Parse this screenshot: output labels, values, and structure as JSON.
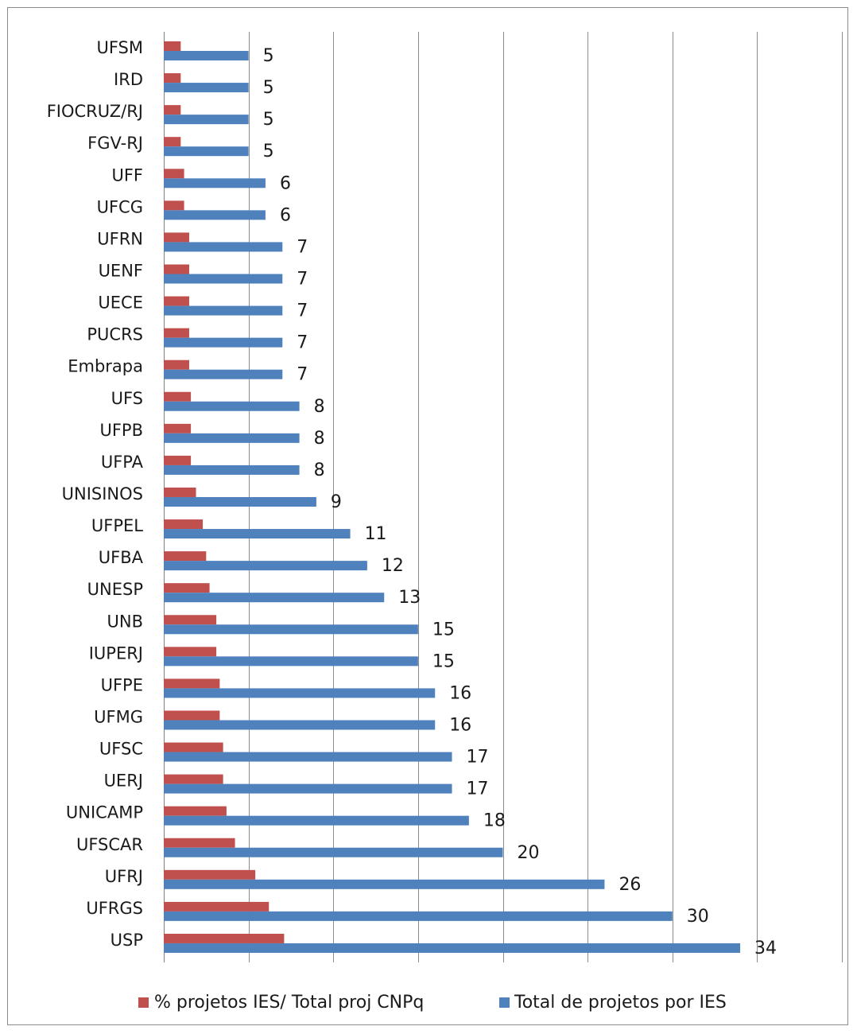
{
  "chart_data": {
    "type": "bar",
    "orientation": "horizontal",
    "categories": [
      "UFSM",
      "IRD",
      "FIOCRUZ/RJ",
      "FGV-RJ",
      "UFF",
      "UFCG",
      "UFRN",
      "UENF",
      "UECE",
      "PUCRS",
      "Embrapa",
      "UFS",
      "UFPB",
      "UFPA",
      "UNISINOS",
      "UFPEL",
      "UFBA",
      "UNESP",
      "UNB",
      "IUPERJ",
      "UFPE",
      "UFMG",
      "UFSC",
      "UERJ",
      "UNICAMP",
      "UFSCAR",
      "UFRJ",
      "UFRGS",
      "USP"
    ],
    "series": [
      {
        "name": "% projetos IES/ Total proj CNPq",
        "color": "#c0504d",
        "values": [
          1.0,
          1.0,
          1.0,
          1.0,
          1.2,
          1.2,
          1.5,
          1.5,
          1.5,
          1.5,
          1.5,
          1.6,
          1.6,
          1.6,
          1.9,
          2.3,
          2.5,
          2.7,
          3.1,
          3.1,
          3.3,
          3.3,
          3.5,
          3.5,
          3.7,
          4.2,
          5.4,
          6.2,
          7.1
        ]
      },
      {
        "name": "Total de projetos por IES",
        "color": "#4f81bd",
        "values": [
          5,
          5,
          5,
          5,
          6,
          6,
          7,
          7,
          7,
          7,
          7,
          8,
          8,
          8,
          9,
          11,
          12,
          13,
          15,
          15,
          16,
          16,
          17,
          17,
          18,
          20,
          26,
          30,
          34
        ],
        "data_labels": [
          "5",
          "5",
          "5",
          "5",
          "6",
          "6",
          "7",
          "7",
          "7",
          "7",
          "7",
          "8",
          "8",
          "8",
          "9",
          "11",
          "12",
          "13",
          "15",
          "15",
          "16",
          "16",
          "17",
          "17",
          "18",
          "20",
          "26",
          "30",
          "34"
        ]
      }
    ],
    "xlim": [
      0,
      40
    ],
    "x_gridlines": [
      0,
      5,
      10,
      15,
      20,
      25,
      30,
      35,
      40
    ],
    "grid": true,
    "legend_position": "bottom",
    "title": "",
    "xlabel": "",
    "ylabel": ""
  }
}
